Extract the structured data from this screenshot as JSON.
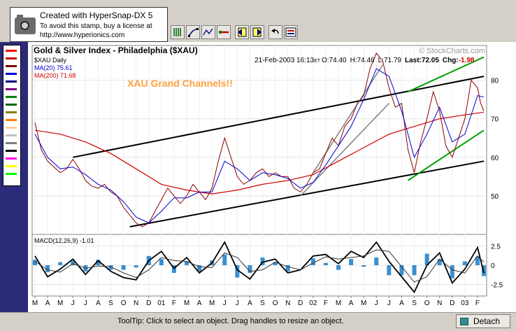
{
  "stamp": {
    "line1": "Created with HyperSnap-DX 5",
    "line2": "To avoid this stamp, buy a license at",
    "line3": "http://www.hyperionics.com"
  },
  "toolbar": {
    "tools": [
      "vertical-lines-tool",
      "trend-line-tool",
      "zigzag-tool",
      "horizontal-line-tool",
      "arrow-left-tool",
      "arrow-right-tool",
      "undo-tool",
      "properties-tool"
    ]
  },
  "palette": {
    "colors": [
      "#ff0000",
      "#cc0000",
      "#800000",
      "#0000cc",
      "#000080",
      "#800080",
      "#008000",
      "#006400",
      "#808000",
      "#ff8000",
      "#ffcc99",
      "#c0c0c0",
      "#808080",
      "#000000",
      "#ff00ff",
      "#ffff00",
      "#00ff00"
    ]
  },
  "status": {
    "tooltip": "ToolTip: Click to select an object. Drag handles to resize an object."
  },
  "detach": {
    "label": "Detach"
  },
  "chart_data": {
    "type": "line",
    "title": "Gold & Silver Index - Philadelphia ($XAU)",
    "watermark": "© StockCharts.com",
    "header": {
      "date": "21-Feb-2003 16:13",
      "tz": "ET",
      "open": "O:74.40",
      "high": "H:74.46",
      "low": "L:71.79",
      "last": "Last:72.05",
      "chg_label": "Chg:",
      "chg_value": "-1.98"
    },
    "annotation": "XAU Grand Channels!!",
    "legend": [
      "$XAU Daily",
      "MA(20) 75.61",
      "MA(200) 71.68"
    ],
    "colors": {
      "price": "#8b0000",
      "ma20": "#0000cd",
      "ma200": "#cc0000",
      "channel_main": "#000000",
      "channel_green": "#00a000",
      "channel_gray": "#808080",
      "annotation": "#ffa040",
      "histogram": "#3a8fd0"
    },
    "price_axis": {
      "ticks": [
        50,
        60,
        70,
        80
      ],
      "labels": [
        "50",
        "60",
        "70",
        "80"
      ],
      "ylim": [
        40,
        89
      ]
    },
    "x_months": [
      "M",
      "A",
      "M",
      "J",
      "J",
      "A",
      "S",
      "O",
      "N",
      "D",
      "01",
      "F",
      "M",
      "A",
      "M",
      "J",
      "J",
      "A",
      "S",
      "O",
      "N",
      "D",
      "02",
      "F",
      "M",
      "A",
      "M",
      "J",
      "J",
      "A",
      "S",
      "O",
      "N",
      "D",
      "03",
      "F"
    ],
    "price_points": [
      [
        0,
        69
      ],
      [
        0.5,
        62
      ],
      [
        1,
        59
      ],
      [
        1.5,
        57.5
      ],
      [
        2,
        56
      ],
      [
        2.5,
        57
      ],
      [
        3,
        59.5
      ],
      [
        3.5,
        57
      ],
      [
        4,
        54
      ],
      [
        4.5,
        52.5
      ],
      [
        5,
        52
      ],
      [
        5.5,
        53
      ],
      [
        6,
        51
      ],
      [
        6.5,
        50
      ],
      [
        7,
        47
      ],
      [
        7.5,
        45
      ],
      [
        8,
        43
      ],
      [
        8.5,
        42
      ],
      [
        9,
        43
      ],
      [
        9.5,
        46
      ],
      [
        10,
        49
      ],
      [
        10.5,
        52
      ],
      [
        11,
        50
      ],
      [
        11.5,
        48
      ],
      [
        12,
        50
      ],
      [
        12.5,
        53
      ],
      [
        13,
        51
      ],
      [
        13.5,
        49
      ],
      [
        14,
        52
      ],
      [
        14.5,
        59
      ],
      [
        15,
        65
      ],
      [
        15.5,
        60
      ],
      [
        16,
        55
      ],
      [
        16.5,
        53
      ],
      [
        17,
        54
      ],
      [
        17.5,
        56
      ],
      [
        18,
        57
      ],
      [
        18.5,
        55
      ],
      [
        19,
        56
      ],
      [
        19.5,
        55
      ],
      [
        20,
        55
      ],
      [
        20.5,
        52
      ],
      [
        21,
        51
      ],
      [
        21.5,
        53
      ],
      [
        22,
        56
      ],
      [
        22.5,
        57
      ],
      [
        23,
        61
      ],
      [
        23.5,
        65
      ],
      [
        24,
        63
      ],
      [
        24.5,
        68
      ],
      [
        25,
        70
      ],
      [
        25.5,
        74
      ],
      [
        26,
        76
      ],
      [
        26.5,
        83
      ],
      [
        27,
        87
      ],
      [
        27.5,
        85
      ],
      [
        28,
        78
      ],
      [
        28.5,
        73
      ],
      [
        29,
        74
      ],
      [
        29.5,
        62
      ],
      [
        30,
        56
      ],
      [
        30.5,
        64
      ],
      [
        31,
        70
      ],
      [
        31.5,
        77
      ],
      [
        32,
        72
      ],
      [
        32.5,
        63
      ],
      [
        33,
        60
      ],
      [
        33.5,
        65
      ],
      [
        34,
        70
      ],
      [
        34.5,
        80
      ],
      [
        35,
        78
      ],
      [
        35.25,
        74
      ],
      [
        35.5,
        72
      ]
    ],
    "ma20_points": [
      [
        0,
        66
      ],
      [
        1,
        60
      ],
      [
        2,
        57
      ],
      [
        3,
        57.5
      ],
      [
        4,
        55.5
      ],
      [
        5,
        53
      ],
      [
        6,
        51.5
      ],
      [
        7,
        48.5
      ],
      [
        8,
        44.5
      ],
      [
        9,
        43
      ],
      [
        10,
        46
      ],
      [
        11,
        49.5
      ],
      [
        12,
        49.5
      ],
      [
        13,
        51
      ],
      [
        14,
        51
      ],
      [
        15,
        59
      ],
      [
        16,
        57
      ],
      [
        17,
        54
      ],
      [
        18,
        56
      ],
      [
        19,
        55.5
      ],
      [
        20,
        54.5
      ],
      [
        21,
        52
      ],
      [
        22,
        53.5
      ],
      [
        23,
        58
      ],
      [
        24,
        63
      ],
      [
        25,
        68
      ],
      [
        26,
        75
      ],
      [
        27,
        83
      ],
      [
        28,
        81
      ],
      [
        29,
        72
      ],
      [
        30,
        60
      ],
      [
        31,
        66
      ],
      [
        32,
        73
      ],
      [
        33,
        64
      ],
      [
        34,
        66
      ],
      [
        35,
        76
      ],
      [
        35.5,
        75.6
      ]
    ],
    "ma200_points": [
      [
        0,
        67
      ],
      [
        2,
        66
      ],
      [
        4,
        64
      ],
      [
        6,
        61
      ],
      [
        8,
        57
      ],
      [
        10,
        53
      ],
      [
        12,
        51.5
      ],
      [
        14,
        50.5
      ],
      [
        16,
        51.5
      ],
      [
        18,
        53
      ],
      [
        20,
        54
      ],
      [
        22,
        55.5
      ],
      [
        24,
        59
      ],
      [
        26,
        62.5
      ],
      [
        28,
        66
      ],
      [
        30,
        68
      ],
      [
        32,
        70
      ],
      [
        34,
        71
      ],
      [
        35.5,
        71.7
      ]
    ],
    "channels": {
      "main_upper": [
        [
          3,
          60
        ],
        [
          35.5,
          81
        ]
      ],
      "main_lower": [
        [
          7.5,
          42
        ],
        [
          35.5,
          59
        ]
      ],
      "green_upper": [
        [
          29.5,
          77
        ],
        [
          35.5,
          86
        ]
      ],
      "green_lower": [
        [
          29.5,
          54
        ],
        [
          35.5,
          67
        ]
      ],
      "gray_upper": [
        [
          22,
          56
        ],
        [
          27.5,
          84
        ]
      ],
      "gray_lower": [
        [
          21,
          50
        ],
        [
          28,
          74
        ]
      ]
    },
    "macd": {
      "label": "MACD(12,26,9) -1.01",
      "ticks": [
        2.5,
        0,
        -2.5
      ],
      "labels": [
        "2.5",
        "0",
        "-2.5"
      ],
      "ylim": [
        -4,
        4
      ],
      "macd_points": [
        [
          0,
          1.2
        ],
        [
          1,
          -1.5
        ],
        [
          2,
          -0.5
        ],
        [
          3,
          0.8
        ],
        [
          4,
          -1.2
        ],
        [
          5,
          0.6
        ],
        [
          6,
          -0.8
        ],
        [
          7,
          -1.6
        ],
        [
          8,
          -1.9
        ],
        [
          9,
          0.6
        ],
        [
          10,
          1.8
        ],
        [
          11,
          -0.4
        ],
        [
          12,
          1.0
        ],
        [
          13,
          -1.0
        ],
        [
          14,
          0.3
        ],
        [
          15,
          3.0
        ],
        [
          16,
          -0.6
        ],
        [
          17,
          -1.8
        ],
        [
          18,
          0.4
        ],
        [
          19,
          0.8
        ],
        [
          20,
          -1.0
        ],
        [
          21,
          -0.6
        ],
        [
          22,
          1.2
        ],
        [
          23,
          1.4
        ],
        [
          24,
          0.2
        ],
        [
          25,
          1.8
        ],
        [
          26,
          1.0
        ],
        [
          27,
          3.0
        ],
        [
          28,
          0.5
        ],
        [
          29,
          -1.5
        ],
        [
          30,
          -3.5
        ],
        [
          31,
          0.0
        ],
        [
          32,
          1.6
        ],
        [
          33,
          -2.3
        ],
        [
          34,
          -0.5
        ],
        [
          35,
          2.3
        ],
        [
          35.5,
          -1.01
        ]
      ],
      "signal_points": [
        [
          0,
          0.5
        ],
        [
          1,
          -0.6
        ],
        [
          2,
          -0.9
        ],
        [
          3,
          0.2
        ],
        [
          4,
          -0.4
        ],
        [
          5,
          -0.1
        ],
        [
          6,
          -0.2
        ],
        [
          7,
          -1.0
        ],
        [
          8,
          -1.6
        ],
        [
          9,
          -0.6
        ],
        [
          10,
          1.0
        ],
        [
          11,
          0.6
        ],
        [
          12,
          0.5
        ],
        [
          13,
          -0.2
        ],
        [
          14,
          -0.3
        ],
        [
          15,
          1.6
        ],
        [
          16,
          1.0
        ],
        [
          17,
          -0.8
        ],
        [
          18,
          -0.6
        ],
        [
          19,
          0.4
        ],
        [
          20,
          -0.2
        ],
        [
          21,
          -0.6
        ],
        [
          22,
          0.3
        ],
        [
          23,
          1.1
        ],
        [
          24,
          0.8
        ],
        [
          25,
          1.0
        ],
        [
          26,
          1.2
        ],
        [
          27,
          2.0
        ],
        [
          28,
          1.8
        ],
        [
          29,
          -0.2
        ],
        [
          30,
          -2.2
        ],
        [
          31,
          -1.5
        ],
        [
          32,
          0.8
        ],
        [
          33,
          -0.6
        ],
        [
          34,
          -1.0
        ],
        [
          35,
          1.2
        ],
        [
          35.5,
          0.4
        ]
      ]
    }
  }
}
